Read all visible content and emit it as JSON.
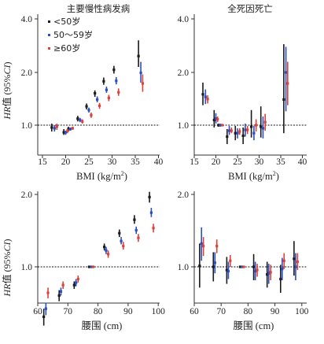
{
  "colors": {
    "lt50": "#1a1a1a",
    "m50_59": "#2a4fbf",
    "ge60": "#e0403a",
    "axis": "#333333",
    "ref": "#111111"
  },
  "ylabel_prefix": "HR",
  "ylabel_rest": "值 (95%",
  "ylabel_ci": "CI",
  "ylabel_close": ")",
  "chart_data": [
    {
      "id": "top-left",
      "type": "scatter",
      "title": "主要慢性病发病",
      "xlabel": "BMI (kg/m²)",
      "xlim": [
        15,
        40
      ],
      "ylim": [
        0.7,
        4.0
      ],
      "yscale": "log",
      "xticks": [
        "15",
        "20",
        "25",
        "30",
        "35",
        "40"
      ],
      "yticks": [
        "1.0",
        "2.0",
        "4.0"
      ],
      "reference_line": 1.0,
      "legend": [
        "<50岁",
        "50～59岁",
        "≥60岁"
      ],
      "legend_position": "top-left",
      "series": [
        {
          "name": "<50岁",
          "points": [
            {
              "x": 17.0,
              "y": 0.97,
              "lo": 0.92,
              "hi": 1.02
            },
            {
              "x": 19.6,
              "y": 0.91,
              "lo": 0.88,
              "hi": 0.95
            },
            {
              "x": 20.6,
              "y": 0.95,
              "lo": 0.92,
              "hi": 0.98
            },
            {
              "x": 22.6,
              "y": 1.09,
              "lo": 1.05,
              "hi": 1.13
            },
            {
              "x": 24.5,
              "y": 1.28,
              "lo": 1.23,
              "hi": 1.33
            },
            {
              "x": 26.3,
              "y": 1.52,
              "lo": 1.45,
              "hi": 1.58
            },
            {
              "x": 28.2,
              "y": 1.78,
              "lo": 1.7,
              "hi": 1.87
            },
            {
              "x": 30.4,
              "y": 2.07,
              "lo": 1.97,
              "hi": 2.18
            },
            {
              "x": 35.7,
              "y": 2.48,
              "lo": 2.15,
              "hi": 3.05
            }
          ]
        },
        {
          "name": "50～59岁",
          "points": [
            {
              "x": 17.6,
              "y": 0.96,
              "lo": 0.92,
              "hi": 1.0
            },
            {
              "x": 20.0,
              "y": 0.91,
              "lo": 0.88,
              "hi": 0.93
            },
            {
              "x": 21.0,
              "y": 0.95,
              "lo": 0.93,
              "hi": 0.97
            },
            {
              "x": 23.1,
              "y": 1.07,
              "lo": 1.04,
              "hi": 1.1
            },
            {
              "x": 25.0,
              "y": 1.22,
              "lo": 1.18,
              "hi": 1.26
            },
            {
              "x": 26.8,
              "y": 1.4,
              "lo": 1.35,
              "hi": 1.46
            },
            {
              "x": 28.8,
              "y": 1.59,
              "lo": 1.53,
              "hi": 1.66
            },
            {
              "x": 30.9,
              "y": 1.79,
              "lo": 1.71,
              "hi": 1.88
            },
            {
              "x": 36.2,
              "y": 1.99,
              "lo": 1.75,
              "hi": 2.3
            }
          ]
        },
        {
          "name": "≥60岁",
          "points": [
            {
              "x": 18.1,
              "y": 0.98,
              "lo": 0.94,
              "hi": 1.02
            },
            {
              "x": 20.4,
              "y": 0.93,
              "lo": 0.9,
              "hi": 0.95
            },
            {
              "x": 21.5,
              "y": 0.96,
              "lo": 0.94,
              "hi": 0.98
            },
            {
              "x": 23.6,
              "y": 1.05,
              "lo": 1.02,
              "hi": 1.08
            },
            {
              "x": 25.5,
              "y": 1.14,
              "lo": 1.1,
              "hi": 1.18
            },
            {
              "x": 27.3,
              "y": 1.29,
              "lo": 1.24,
              "hi": 1.34
            },
            {
              "x": 29.3,
              "y": 1.43,
              "lo": 1.37,
              "hi": 1.49
            },
            {
              "x": 31.4,
              "y": 1.54,
              "lo": 1.47,
              "hi": 1.62
            },
            {
              "x": 36.6,
              "y": 1.73,
              "lo": 1.55,
              "hi": 1.95
            }
          ]
        }
      ]
    },
    {
      "id": "top-right",
      "type": "scatter",
      "title": "全死因死亡",
      "xlabel": "BMI (kg/m²)",
      "xlim": [
        15,
        40
      ],
      "ylim": [
        0.7,
        4.0
      ],
      "yscale": "log",
      "xticks": [
        "15",
        "20",
        "25",
        "30",
        "35",
        "40"
      ],
      "yticks": [
        "1.0",
        "2.0",
        "4.0"
      ],
      "reference_line": 1.0,
      "series": [
        {
          "name": "<50岁",
          "points": [
            {
              "x": 17.0,
              "y": 1.5,
              "lo": 1.3,
              "hi": 1.75
            },
            {
              "x": 19.6,
              "y": 1.07,
              "lo": 0.97,
              "hi": 1.22
            },
            {
              "x": 20.6,
              "y": 1.0,
              "lo": 0.98,
              "hi": 1.02
            },
            {
              "x": 22.6,
              "y": 0.86,
              "lo": 0.78,
              "hi": 0.95
            },
            {
              "x": 24.5,
              "y": 0.9,
              "lo": 0.82,
              "hi": 0.99
            },
            {
              "x": 26.3,
              "y": 0.87,
              "lo": 0.78,
              "hi": 0.97
            },
            {
              "x": 28.2,
              "y": 0.98,
              "lo": 0.85,
              "hi": 1.22
            },
            {
              "x": 30.4,
              "y": 0.98,
              "lo": 0.85,
              "hi": 1.28
            },
            {
              "x": 35.7,
              "y": 1.4,
              "lo": 0.9,
              "hi": 2.9
            }
          ]
        },
        {
          "name": "50～59岁",
          "points": [
            {
              "x": 17.6,
              "y": 1.45,
              "lo": 1.32,
              "hi": 1.6
            },
            {
              "x": 20.0,
              "y": 1.09,
              "lo": 1.02,
              "hi": 1.17
            },
            {
              "x": 21.0,
              "y": 1.0,
              "lo": 0.98,
              "hi": 1.02
            },
            {
              "x": 23.1,
              "y": 0.93,
              "lo": 0.88,
              "hi": 0.99
            },
            {
              "x": 25.0,
              "y": 0.9,
              "lo": 0.84,
              "hi": 0.96
            },
            {
              "x": 26.8,
              "y": 0.94,
              "lo": 0.86,
              "hi": 1.02
            },
            {
              "x": 28.8,
              "y": 0.9,
              "lo": 0.82,
              "hi": 0.99
            },
            {
              "x": 30.9,
              "y": 0.96,
              "lo": 0.84,
              "hi": 1.12
            },
            {
              "x": 36.2,
              "y": 2.0,
              "lo": 1.2,
              "hi": 2.8
            }
          ]
        },
        {
          "name": "≥60岁",
          "points": [
            {
              "x": 18.1,
              "y": 1.41,
              "lo": 1.33,
              "hi": 1.48
            },
            {
              "x": 20.4,
              "y": 1.08,
              "lo": 1.04,
              "hi": 1.12
            },
            {
              "x": 21.5,
              "y": 1.0,
              "lo": 0.99,
              "hi": 1.01
            },
            {
              "x": 23.6,
              "y": 0.93,
              "lo": 0.9,
              "hi": 0.97
            },
            {
              "x": 25.5,
              "y": 0.92,
              "lo": 0.88,
              "hi": 0.96
            },
            {
              "x": 27.3,
              "y": 0.94,
              "lo": 0.89,
              "hi": 0.99
            },
            {
              "x": 29.3,
              "y": 1.0,
              "lo": 0.92,
              "hi": 1.08
            },
            {
              "x": 31.4,
              "y": 1.04,
              "lo": 0.93,
              "hi": 1.16
            },
            {
              "x": 36.6,
              "y": 1.73,
              "lo": 1.3,
              "hi": 2.3
            }
          ]
        }
      ]
    },
    {
      "id": "bottom-left",
      "type": "scatter",
      "title": "",
      "xlabel": "腰围 (cm)",
      "xlim": [
        60,
        100
      ],
      "ylim": [
        0.55,
        2.0
      ],
      "yscale": "log",
      "xticks": [
        "60",
        "70",
        "80",
        "90",
        "100"
      ],
      "yticks": [
        "1.0",
        "2.0"
      ],
      "reference_line": 1.0,
      "series": [
        {
          "name": "<50岁",
          "points": [
            {
              "x": 62.0,
              "y": 0.62,
              "lo": 0.57,
              "hi": 0.67
            },
            {
              "x": 67.1,
              "y": 0.76,
              "lo": 0.72,
              "hi": 0.8
            },
            {
              "x": 72.1,
              "y": 0.84,
              "lo": 0.81,
              "hi": 0.87
            },
            {
              "x": 77.1,
              "y": 1.0,
              "lo": 0.99,
              "hi": 1.01
            },
            {
              "x": 82.1,
              "y": 1.21,
              "lo": 1.17,
              "hi": 1.25
            },
            {
              "x": 87.1,
              "y": 1.38,
              "lo": 1.33,
              "hi": 1.43
            },
            {
              "x": 92.1,
              "y": 1.57,
              "lo": 1.51,
              "hi": 1.64
            },
            {
              "x": 97.1,
              "y": 1.95,
              "lo": 1.85,
              "hi": 2.05
            }
          ]
        },
        {
          "name": "50～59岁",
          "points": [
            {
              "x": 62.7,
              "y": 0.67,
              "lo": 0.63,
              "hi": 0.71
            },
            {
              "x": 67.7,
              "y": 0.79,
              "lo": 0.76,
              "hi": 0.82
            },
            {
              "x": 72.7,
              "y": 0.86,
              "lo": 0.83,
              "hi": 0.89
            },
            {
              "x": 77.7,
              "y": 1.0,
              "lo": 0.99,
              "hi": 1.01
            },
            {
              "x": 82.7,
              "y": 1.17,
              "lo": 1.13,
              "hi": 1.21
            },
            {
              "x": 87.7,
              "y": 1.28,
              "lo": 1.24,
              "hi": 1.33
            },
            {
              "x": 92.7,
              "y": 1.42,
              "lo": 1.37,
              "hi": 1.47
            },
            {
              "x": 97.7,
              "y": 1.68,
              "lo": 1.61,
              "hi": 1.76
            }
          ]
        },
        {
          "name": "≥60岁",
          "points": [
            {
              "x": 63.4,
              "y": 0.78,
              "lo": 0.74,
              "hi": 0.82
            },
            {
              "x": 68.4,
              "y": 0.84,
              "lo": 0.81,
              "hi": 0.87
            },
            {
              "x": 73.4,
              "y": 0.89,
              "lo": 0.86,
              "hi": 0.92
            },
            {
              "x": 78.4,
              "y": 1.0,
              "lo": 0.99,
              "hi": 1.01
            },
            {
              "x": 83.4,
              "y": 1.13,
              "lo": 1.09,
              "hi": 1.17
            },
            {
              "x": 88.4,
              "y": 1.22,
              "lo": 1.18,
              "hi": 1.27
            },
            {
              "x": 93.4,
              "y": 1.32,
              "lo": 1.27,
              "hi": 1.37
            },
            {
              "x": 98.4,
              "y": 1.45,
              "lo": 1.39,
              "hi": 1.51
            }
          ]
        }
      ]
    },
    {
      "id": "bottom-right",
      "type": "scatter",
      "title": "",
      "xlabel": "腰围 (cm)",
      "xlim": [
        60,
        100
      ],
      "ylim": [
        0.55,
        2.0
      ],
      "yscale": "log",
      "xticks": [
        "60",
        "70",
        "80",
        "90",
        "100"
      ],
      "yticks": [
        "1.0",
        "2.0"
      ],
      "reference_line": 1.0,
      "series": [
        {
          "name": "<50岁",
          "points": [
            {
              "x": 62.0,
              "y": 1.01,
              "lo": 0.82,
              "hi": 1.25
            },
            {
              "x": 67.1,
              "y": 1.0,
              "lo": 0.87,
              "hi": 1.15
            },
            {
              "x": 72.1,
              "y": 0.97,
              "lo": 0.85,
              "hi": 1.1
            },
            {
              "x": 77.1,
              "y": 1.0,
              "lo": 0.99,
              "hi": 1.01
            },
            {
              "x": 82.1,
              "y": 1.0,
              "lo": 0.88,
              "hi": 1.13
            },
            {
              "x": 87.1,
              "y": 0.93,
              "lo": 0.82,
              "hi": 1.05
            },
            {
              "x": 92.1,
              "y": 0.89,
              "lo": 0.78,
              "hi": 1.02
            },
            {
              "x": 97.1,
              "y": 1.08,
              "lo": 0.92,
              "hi": 1.28
            }
          ]
        },
        {
          "name": "50～59岁",
          "points": [
            {
              "x": 62.7,
              "y": 1.25,
              "lo": 1.06,
              "hi": 1.46
            },
            {
              "x": 67.7,
              "y": 1.04,
              "lo": 0.94,
              "hi": 1.15
            },
            {
              "x": 72.7,
              "y": 0.96,
              "lo": 0.89,
              "hi": 1.05
            },
            {
              "x": 77.7,
              "y": 1.0,
              "lo": 0.99,
              "hi": 1.01
            },
            {
              "x": 82.7,
              "y": 0.96,
              "lo": 0.88,
              "hi": 1.05
            },
            {
              "x": 87.7,
              "y": 0.94,
              "lo": 0.85,
              "hi": 1.03
            },
            {
              "x": 92.7,
              "y": 0.98,
              "lo": 0.88,
              "hi": 1.09
            },
            {
              "x": 97.7,
              "y": 1.0,
              "lo": 0.88,
              "hi": 1.14
            }
          ]
        },
        {
          "name": "≥60岁",
          "points": [
            {
              "x": 63.4,
              "y": 1.22,
              "lo": 1.11,
              "hi": 1.33
            },
            {
              "x": 68.4,
              "y": 1.22,
              "lo": 1.14,
              "hi": 1.3
            },
            {
              "x": 73.4,
              "y": 1.06,
              "lo": 1.0,
              "hi": 1.12
            },
            {
              "x": 78.4,
              "y": 1.0,
              "lo": 0.99,
              "hi": 1.01
            },
            {
              "x": 83.4,
              "y": 0.97,
              "lo": 0.91,
              "hi": 1.03
            },
            {
              "x": 88.4,
              "y": 0.95,
              "lo": 0.88,
              "hi": 1.02
            },
            {
              "x": 93.4,
              "y": 1.06,
              "lo": 0.98,
              "hi": 1.14
            },
            {
              "x": 98.4,
              "y": 1.05,
              "lo": 0.97,
              "hi": 1.14
            }
          ]
        }
      ]
    }
  ]
}
